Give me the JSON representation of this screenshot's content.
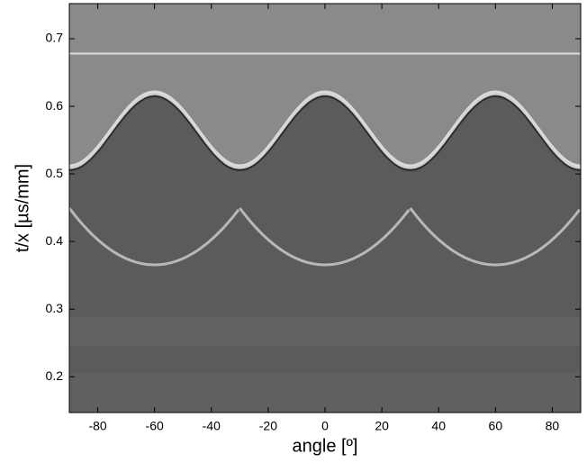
{
  "chart_data": {
    "type": "image",
    "x_label": "angle  [º]",
    "y_label": "t/x  [µs/mm]",
    "xlim": [
      -90,
      90
    ],
    "ylim": [
      0.147,
      0.752
    ],
    "xticks": [
      -80,
      -60,
      -40,
      -20,
      0,
      20,
      40,
      60,
      80
    ],
    "yticks": [
      0.2,
      0.3,
      0.4,
      0.5,
      0.6,
      0.7
    ],
    "colormap": "gray"
  }
}
